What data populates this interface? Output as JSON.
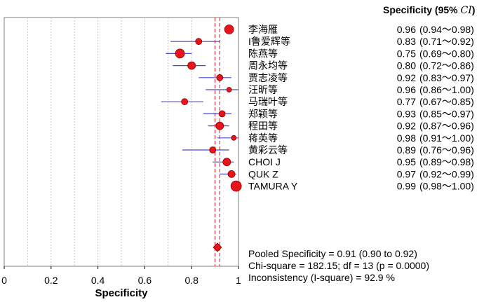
{
  "chart_data": {
    "type": "forest",
    "xlabel": "Specificity",
    "xlim": [
      0,
      1
    ],
    "xticks": [
      "0",
      "0.2",
      "0.4",
      "0.6",
      "0.8",
      "1"
    ],
    "grid": true,
    "column_header": "Specificity (95% CI)",
    "studies": [
      {
        "name": "李海雁",
        "estimate": 0.96,
        "lower": 0.94,
        "upper": 0.98,
        "ci_text": "(0.94～0.98)"
      },
      {
        "name": "I鲁爱辉等",
        "estimate": 0.83,
        "lower": 0.71,
        "upper": 0.92,
        "ci_text": "(0.71～0.92)"
      },
      {
        "name": "陈燕等",
        "estimate": 0.75,
        "lower": 0.69,
        "upper": 0.8,
        "ci_text": "(0.69～0.80)"
      },
      {
        "name": "周永均等",
        "estimate": 0.8,
        "lower": 0.72,
        "upper": 0.86,
        "ci_text": "(0.72～0.86)"
      },
      {
        "name": "贾志凌等",
        "estimate": 0.92,
        "lower": 0.83,
        "upper": 0.97,
        "ci_text": "(0.83～0.97)"
      },
      {
        "name": "汪昕等",
        "estimate": 0.96,
        "lower": 0.86,
        "upper": 1.0,
        "ci_text": "(0.86～1.00)"
      },
      {
        "name": "马瑞叶等",
        "estimate": 0.77,
        "lower": 0.67,
        "upper": 0.85,
        "ci_text": "(0.67～0.85)"
      },
      {
        "name": "郑颖等",
        "estimate": 0.93,
        "lower": 0.85,
        "upper": 0.97,
        "ci_text": "(0.85～0.97)"
      },
      {
        "name": "程田等",
        "estimate": 0.92,
        "lower": 0.87,
        "upper": 0.96,
        "ci_text": "(0.87～0.96)"
      },
      {
        "name": "蒋英等",
        "estimate": 0.98,
        "lower": 0.91,
        "upper": 1.0,
        "ci_text": "(0.91～1.00)"
      },
      {
        "name": "黄彩云等",
        "estimate": 0.89,
        "lower": 0.76,
        "upper": 0.96,
        "ci_text": "(0.76～0.96)"
      },
      {
        "name": "CHOI J",
        "estimate": 0.95,
        "lower": 0.89,
        "upper": 0.98,
        "ci_text": "(0.89～0.98)"
      },
      {
        "name": "QUK Z",
        "estimate": 0.97,
        "lower": 0.92,
        "upper": 0.99,
        "ci_text": "(0.92～0.99)"
      },
      {
        "name": "TAMURA Y",
        "estimate": 0.99,
        "lower": 0.98,
        "upper": 1.0,
        "ci_text": "(0.98～1.00)"
      }
    ],
    "pooled": {
      "estimate": 0.91,
      "lower": 0.9,
      "upper": 0.92
    },
    "summary_lines": [
      "Pooled Specificity = 0.91 (0.90 to 0.92)",
      "Chi-square = 182.15; df =  13 (p = 0.0000)",
      "Inconsistency (I-square) = 92.9 %"
    ],
    "colors": {
      "marker_fill": "#e8141c",
      "marker_stroke": "#8a0000",
      "ci_line": "#4b4bc8",
      "ref_line": "#e01020",
      "grid": "#c8c8c8"
    }
  }
}
